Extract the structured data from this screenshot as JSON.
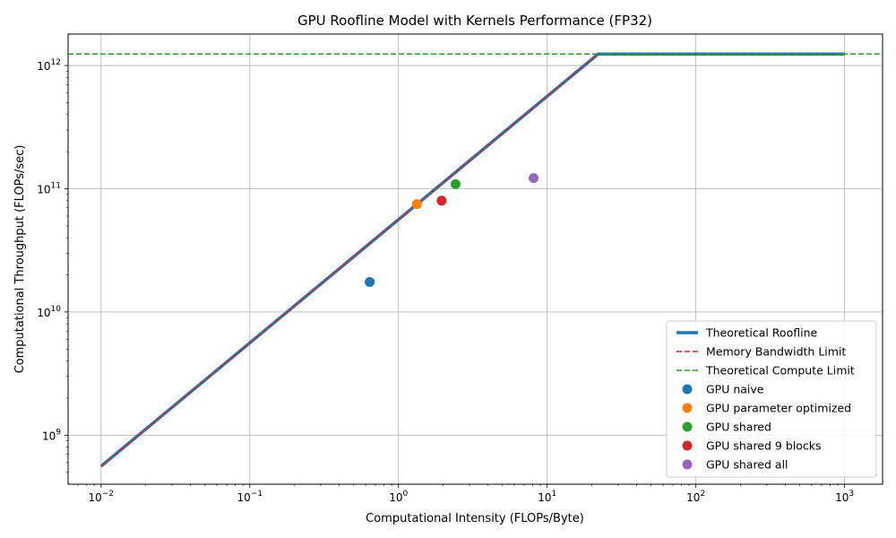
{
  "chart_data": {
    "type": "scatter",
    "title": "GPU Roofline Model with Kernels Performance (FP32)",
    "xlabel": "Computational Intensity (FLOPs/Byte)",
    "ylabel": "Computational Throughput (FLOPs/sec)",
    "xscale": "log",
    "yscale": "log",
    "xlim": [
      0.006,
      1800
    ],
    "ylim": [
      400000000.0,
      1800000000000.0
    ],
    "x_ticks": [
      {
        "value": 0.01,
        "base": "10",
        "exp": "−2"
      },
      {
        "value": 0.1,
        "base": "10",
        "exp": "−1"
      },
      {
        "value": 1,
        "base": "10",
        "exp": "0"
      },
      {
        "value": 10,
        "base": "10",
        "exp": "1"
      },
      {
        "value": 100,
        "base": "10",
        "exp": "2"
      },
      {
        "value": 1000,
        "base": "10",
        "exp": "3"
      }
    ],
    "y_ticks": [
      {
        "value": 1000000000.0,
        "base": "10",
        "exp": "9"
      },
      {
        "value": 10000000000.0,
        "base": "10",
        "exp": "10"
      },
      {
        "value": 100000000000.0,
        "base": "10",
        "exp": "11"
      },
      {
        "value": 1000000000000.0,
        "base": "10",
        "exp": "12"
      }
    ],
    "grid": true,
    "legend_position": "bottom-right",
    "lines": [
      {
        "name": "Theoretical Roofline",
        "color": "#1f77b4",
        "style": "solid",
        "x": [
          0.01,
          22,
          1000
        ],
        "y": [
          560000000.0,
          1240000000000.0,
          1240000000000.0
        ]
      },
      {
        "name": "Memory Bandwidth Limit",
        "color": "#d62728",
        "style": "dashed",
        "x": [
          0.01,
          22
        ],
        "y": [
          560000000.0,
          1240000000000.0
        ]
      },
      {
        "name": "Theoretical Compute Limit",
        "color": "#2ca02c",
        "style": "dashed",
        "y": 1240000000000.0
      }
    ],
    "series": [
      {
        "name": "GPU naive",
        "color": "#1f77b4",
        "x": 0.64,
        "y": 17500000000.0
      },
      {
        "name": "GPU parameter optimized",
        "color": "#ff7f0e",
        "x": 1.33,
        "y": 75000000000.0
      },
      {
        "name": "GPU shared",
        "color": "#2ca02c",
        "x": 2.42,
        "y": 109000000000.0
      },
      {
        "name": "GPU shared 9 blocks",
        "color": "#d62728",
        "x": 1.95,
        "y": 80000000000.0
      },
      {
        "name": "GPU shared all",
        "color": "#9467bd",
        "x": 8.1,
        "y": 122000000000.0
      }
    ]
  }
}
